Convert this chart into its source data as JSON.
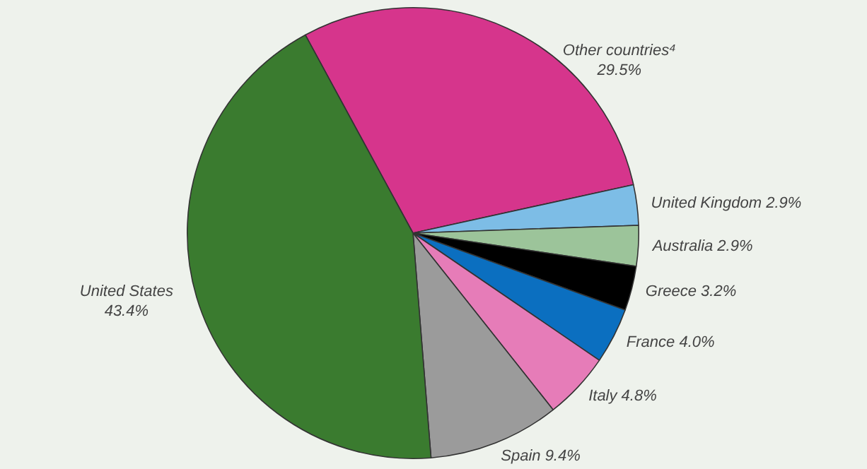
{
  "chart_data": {
    "type": "pie",
    "categories": [
      "Other countries⁴",
      "United Kingdom",
      "Australia",
      "Greece",
      "France",
      "Italy",
      "Spain",
      "United States"
    ],
    "values": [
      29.5,
      2.9,
      2.9,
      3.2,
      4.0,
      4.8,
      9.4,
      43.4
    ],
    "value_labels": [
      "29.5%",
      "2.9%",
      "2.9%",
      "3.2%",
      "4.0%",
      "4.8%",
      "9.4%",
      "43.4%"
    ],
    "colors": [
      "#d6358c",
      "#7dbde6",
      "#9cc49a",
      "#000000",
      "#0b6fc0",
      "#e67cb8",
      "#9b9b9b",
      "#3a7b2f"
    ],
    "legend": false
  }
}
